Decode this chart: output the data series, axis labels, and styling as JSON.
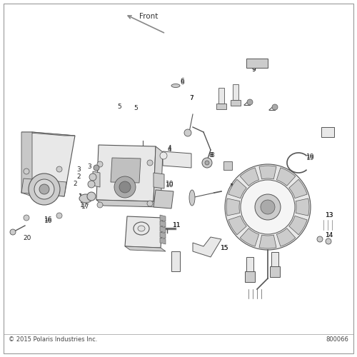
{
  "background_color": "#ffffff",
  "border_color": "#cccccc",
  "bottom_left_text": "© 2015 Polaris Industries Inc.",
  "bottom_right_text": "800066",
  "front_label": "Front",
  "line_color": "#555555",
  "text_color": "#333333",
  "label_color": "#222222",
  "font_size_labels": 6.5,
  "font_size_footer": 6.0,
  "font_size_front": 7.5,
  "fill_light": "#e8e8e8",
  "fill_mid": "#cccccc",
  "fill_dark": "#aaaaaa",
  "fill_white": "#f5f5f5"
}
